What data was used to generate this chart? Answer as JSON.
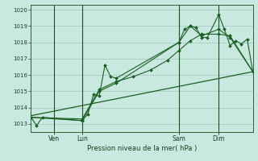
{
  "xlabel": "Pression niveau de la mer( hPa )",
  "bg_color": "#c8e8e0",
  "grid_color": "#a0c8c0",
  "line_color": "#1a6020",
  "ylim": [
    1012.5,
    1020.3
  ],
  "yticks": [
    1013,
    1014,
    1015,
    1016,
    1017,
    1018,
    1019,
    1020
  ],
  "xlim": [
    0,
    78
  ],
  "day_positions": [
    8,
    18,
    52,
    66
  ],
  "day_labels": [
    "Ven",
    "Lun",
    "Sam",
    "Dim"
  ],
  "line1_x": [
    0,
    2,
    4,
    18,
    20,
    22,
    24,
    26,
    28,
    30,
    52,
    54,
    56,
    58,
    60,
    62,
    66,
    68,
    70,
    72,
    74,
    76,
    78
  ],
  "line1_y": [
    1013.4,
    1012.9,
    1013.4,
    1013.2,
    1013.6,
    1014.8,
    1014.7,
    1016.6,
    1015.9,
    1015.8,
    1018.0,
    1018.8,
    1019.0,
    1018.9,
    1018.3,
    1018.3,
    1019.7,
    1018.8,
    1017.8,
    1018.1,
    1017.9,
    1018.2,
    1016.2
  ],
  "line2_x": [
    0,
    18,
    24,
    30,
    36,
    42,
    48,
    52,
    56,
    60,
    66,
    70,
    78
  ],
  "line2_y": [
    1013.4,
    1013.3,
    1015.1,
    1015.6,
    1015.9,
    1016.3,
    1016.9,
    1017.5,
    1018.1,
    1018.5,
    1018.5,
    1018.4,
    1016.2
  ],
  "line3_x": [
    0,
    18,
    24,
    30,
    52,
    56,
    60,
    66,
    70,
    78
  ],
  "line3_y": [
    1013.4,
    1013.2,
    1015.0,
    1015.5,
    1018.0,
    1019.0,
    1018.4,
    1018.8,
    1018.3,
    1016.2
  ],
  "trend_x": [
    0,
    78
  ],
  "trend_y": [
    1013.5,
    1016.2
  ]
}
